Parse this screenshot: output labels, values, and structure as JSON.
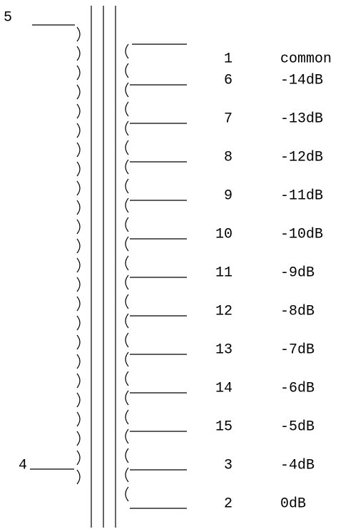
{
  "pins": {
    "top_left": "5",
    "bottom_left": "4"
  },
  "taps": [
    {
      "pin": "1",
      "label": "common"
    },
    {
      "pin": "6",
      "label": "-14dB"
    },
    {
      "pin": "7",
      "label": "-13dB"
    },
    {
      "pin": "8",
      "label": "-12dB"
    },
    {
      "pin": "9",
      "label": "-11dB"
    },
    {
      "pin": "10",
      "label": "-10dB"
    },
    {
      "pin": "11",
      "label": "-9dB"
    },
    {
      "pin": "12",
      "label": "-8dB"
    },
    {
      "pin": "13",
      "label": "-7dB"
    },
    {
      "pin": "14",
      "label": "-6dB"
    },
    {
      "pin": "15",
      "label": "-5dB"
    },
    {
      "pin": "3",
      "label": "-4dB"
    },
    {
      "pin": "2",
      "label": "0dB"
    }
  ]
}
